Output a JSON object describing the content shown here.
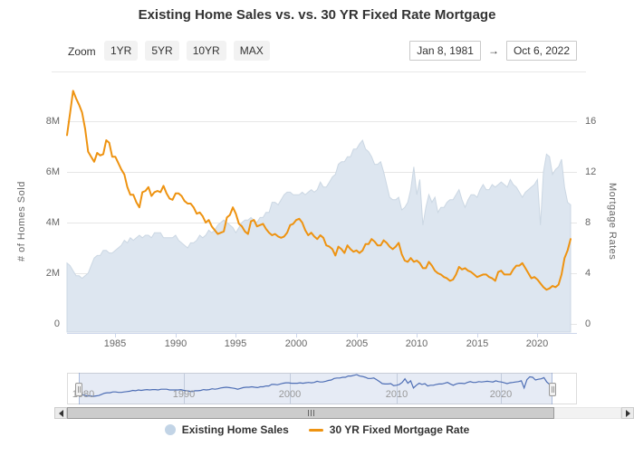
{
  "title": "Existing Home Sales vs. vs. 30 YR Fixed Rate Mortgage",
  "toolbar": {
    "zoom_label": "Zoom",
    "buttons": [
      "1YR",
      "5YR",
      "10YR",
      "MAX"
    ],
    "date_from": "Jan 8, 1981",
    "range_arrow": "→",
    "date_to": "Oct 6, 2022"
  },
  "axes": {
    "y_left_title": "# of Homes Sold",
    "y_right_title": "Mortgage Rates",
    "y_left_ticks": [
      "8M",
      "6M",
      "4M",
      "2M",
      "0"
    ],
    "y_right_ticks": [
      "16",
      "12",
      "8",
      "4",
      "0"
    ],
    "x_ticks": [
      "1985",
      "1990",
      "1995",
      "2000",
      "2005",
      "2010",
      "2015",
      "2020"
    ]
  },
  "navigator": {
    "labels": [
      "1980",
      "1990",
      "2000",
      "2010",
      "2020"
    ]
  },
  "legend": {
    "items": [
      {
        "label": "Existing Home Sales",
        "color": "#c2d4e6",
        "marker": "circle"
      },
      {
        "label": "30 YR Fixed Mortgage Rate",
        "color": "#ee9311",
        "marker": "line"
      }
    ]
  },
  "colors": {
    "sales_area": "#dde6f0",
    "sales_edge": "#cbd7e3",
    "mortgage_line": "#ee9311",
    "navigator_line": "#4a6bb3",
    "grid": "#e6e6e6",
    "axis_label": "#666666"
  },
  "chart_data": {
    "type": "area+line",
    "x_start": 1981.0,
    "x_end": 2022.75,
    "x_interval_years": 0.25,
    "x_tick_years": [
      1985,
      1990,
      1995,
      2000,
      2005,
      2010,
      2015,
      2020
    ],
    "title": "Existing Home Sales vs. vs. 30 YR Fixed Rate Mortgage",
    "y_left": {
      "label": "# of Homes Sold",
      "min": 0,
      "max": 8,
      "unit": "millions"
    },
    "y_right": {
      "label": "Mortgage Rates",
      "min": 0,
      "max": 16,
      "unit": "%"
    },
    "series": [
      {
        "name": "Existing Home Sales",
        "type": "area",
        "axis": "left",
        "unit": "M homes (annualized)",
        "values": [
          2.4,
          2.3,
          2.1,
          1.9,
          1.9,
          1.8,
          1.9,
          2.0,
          2.3,
          2.6,
          2.7,
          2.7,
          2.9,
          2.9,
          2.8,
          2.8,
          2.9,
          3.0,
          3.1,
          3.3,
          3.2,
          3.4,
          3.3,
          3.4,
          3.5,
          3.4,
          3.5,
          3.5,
          3.4,
          3.6,
          3.6,
          3.6,
          3.4,
          3.4,
          3.4,
          3.4,
          3.5,
          3.3,
          3.2,
          3.1,
          3.0,
          3.2,
          3.2,
          3.3,
          3.5,
          3.4,
          3.5,
          3.7,
          3.6,
          3.7,
          3.9,
          4.0,
          4.1,
          4.0,
          3.9,
          3.8,
          3.6,
          3.8,
          4.0,
          4.1,
          4.1,
          4.2,
          4.1,
          4.0,
          4.2,
          4.2,
          4.4,
          4.4,
          4.8,
          4.8,
          4.7,
          4.9,
          5.1,
          5.2,
          5.2,
          5.1,
          5.1,
          5.1,
          5.2,
          5.1,
          5.2,
          5.3,
          5.2,
          5.3,
          5.6,
          5.4,
          5.4,
          5.6,
          5.8,
          5.9,
          6.3,
          6.4,
          6.4,
          6.6,
          6.6,
          6.9,
          6.9,
          7.1,
          7.25,
          6.9,
          6.8,
          6.6,
          6.3,
          6.3,
          6.4,
          6.0,
          5.5,
          5.0,
          4.9,
          4.9,
          5.0,
          4.5,
          4.6,
          4.8,
          5.3,
          6.2,
          5.1,
          5.7,
          3.9,
          4.6,
          5.1,
          4.8,
          5.0,
          4.4,
          4.6,
          4.6,
          4.8,
          4.9,
          4.9,
          5.1,
          5.3,
          4.9,
          4.6,
          4.9,
          5.1,
          5.1,
          5.0,
          5.3,
          5.5,
          5.3,
          5.3,
          5.5,
          5.4,
          5.5,
          5.6,
          5.5,
          5.4,
          5.7,
          5.5,
          5.4,
          5.2,
          5.0,
          5.2,
          5.3,
          5.4,
          5.5,
          5.7,
          3.9,
          6.0,
          6.7,
          6.6,
          5.9,
          6.1,
          6.2,
          6.5,
          5.4,
          4.8,
          4.7
        ]
      },
      {
        "name": "30 YR Fixed Mortgage Rate",
        "type": "line",
        "axis": "right",
        "unit": "%",
        "values": [
          14.9,
          16.6,
          18.4,
          17.8,
          17.3,
          16.7,
          15.4,
          13.6,
          13.2,
          12.8,
          13.5,
          13.3,
          13.4,
          14.5,
          14.3,
          13.2,
          13.2,
          12.7,
          12.2,
          11.8,
          10.8,
          10.2,
          10.2,
          9.6,
          9.2,
          10.4,
          10.5,
          10.8,
          10.1,
          10.4,
          10.5,
          10.4,
          10.9,
          10.3,
          9.9,
          9.8,
          10.3,
          10.3,
          10.1,
          9.7,
          9.5,
          9.5,
          9.2,
          8.7,
          8.8,
          8.5,
          8.0,
          8.2,
          7.7,
          7.4,
          7.1,
          7.2,
          7.3,
          8.4,
          8.6,
          9.2,
          8.7,
          7.9,
          7.7,
          7.3,
          7.1,
          8.1,
          8.2,
          7.7,
          7.8,
          7.9,
          7.5,
          7.2,
          7.0,
          7.1,
          6.9,
          6.8,
          6.9,
          7.2,
          7.8,
          7.9,
          8.2,
          8.3,
          8.0,
          7.4,
          7.0,
          7.2,
          6.9,
          6.7,
          7.0,
          6.8,
          6.2,
          6.1,
          5.9,
          5.4,
          6.1,
          5.9,
          5.6,
          6.2,
          5.9,
          5.7,
          5.8,
          5.6,
          5.8,
          6.3,
          6.3,
          6.7,
          6.5,
          6.2,
          6.2,
          6.6,
          6.4,
          6.1,
          5.9,
          6.1,
          6.4,
          5.5,
          5.0,
          4.9,
          5.2,
          4.9,
          5.0,
          4.8,
          4.4,
          4.4,
          4.9,
          4.6,
          4.2,
          4.0,
          3.9,
          3.7,
          3.6,
          3.4,
          3.5,
          3.9,
          4.5,
          4.3,
          4.4,
          4.2,
          4.1,
          3.9,
          3.7,
          3.8,
          3.9,
          3.9,
          3.7,
          3.6,
          3.4,
          4.1,
          4.2,
          3.9,
          3.9,
          3.9,
          4.3,
          4.6,
          4.6,
          4.8,
          4.4,
          4.0,
          3.6,
          3.7,
          3.5,
          3.2,
          2.9,
          2.7,
          2.8,
          3.0,
          2.9,
          3.1,
          3.9,
          5.2,
          5.8,
          6.7
        ]
      }
    ],
    "navigator_series": "Existing Home Sales",
    "legend_position": "bottom",
    "grid": "horizontal"
  }
}
